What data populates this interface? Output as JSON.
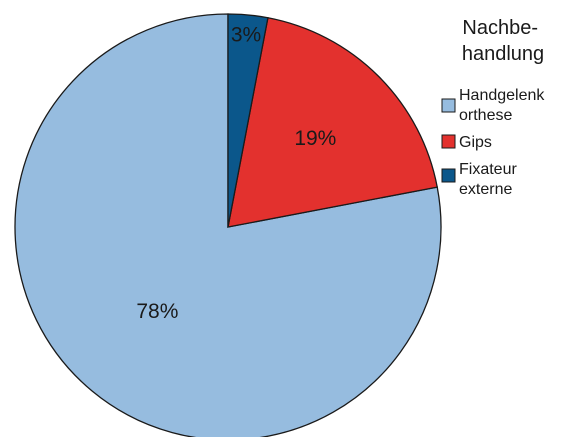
{
  "chart_data": {
    "type": "pie",
    "title": "",
    "start_angle_deg": 0,
    "direction": "counterclockwise",
    "slices": [
      {
        "label": "Handgelenk orthese",
        "value": 78,
        "display": "78%",
        "color": "#96bcdf"
      },
      {
        "label": "Gips",
        "value": 19,
        "display": "19%",
        "color": "#e3312e"
      },
      {
        "label": "Fixateur externe",
        "value": 3,
        "display": "3%",
        "color": "#0b578b"
      }
    ],
    "legend": {
      "title_lines": [
        "Nachbe-",
        "handlung"
      ],
      "placement": "right",
      "entries": [
        {
          "lines": [
            "Handgelenk",
            "orthese"
          ],
          "color": "#96bcdf"
        },
        {
          "lines": [
            "Gips"
          ],
          "color": "#e3312e"
        },
        {
          "lines": [
            "Fixateur",
            "externe"
          ],
          "color": "#0b578b"
        }
      ]
    }
  }
}
